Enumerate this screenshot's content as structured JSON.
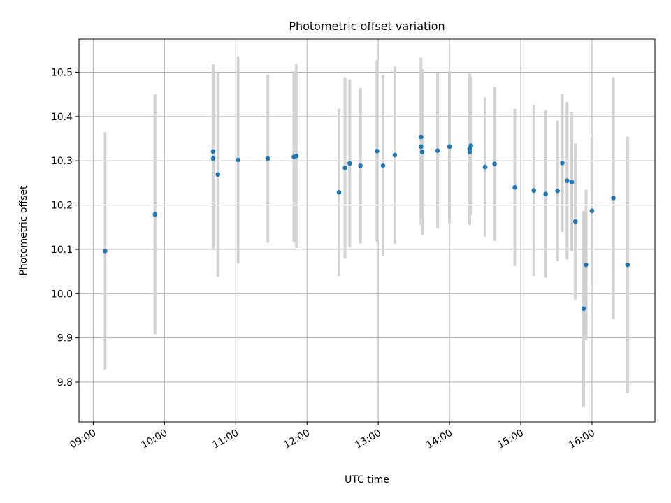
{
  "chart_data": {
    "type": "scatter",
    "title": "Photometric offset variation",
    "xlabel": "UTC time",
    "ylabel": "Photometric offset",
    "xlim": [
      "08:48",
      "16:53"
    ],
    "ylim": [
      9.71,
      10.575
    ],
    "grid": true,
    "x_ticks": [
      "09:00",
      "10:00",
      "11:00",
      "12:00",
      "13:00",
      "14:00",
      "15:00",
      "16:00"
    ],
    "y_ticks": [
      "9.8",
      "9.9",
      "10.0",
      "10.1",
      "10.2",
      "10.3",
      "10.4",
      "10.5"
    ],
    "colors": {
      "point": "#1f77b4",
      "errorbar": "#d3d3d3",
      "grid": "#b0b0b0"
    },
    "points": [
      {
        "x": "09:10",
        "y": 10.096,
        "err": 0.268
      },
      {
        "x": "09:52",
        "y": 10.179,
        "err": 0.271
      },
      {
        "x": "10:41",
        "y": 10.321,
        "err": 0.197
      },
      {
        "x": "10:41",
        "y": 10.305,
        "err": 0.207
      },
      {
        "x": "10:45",
        "y": 10.269,
        "err": 0.231
      },
      {
        "x": "11:02",
        "y": 10.302,
        "err": 0.234
      },
      {
        "x": "11:27",
        "y": 10.305,
        "err": 0.19
      },
      {
        "x": "11:49",
        "y": 10.309,
        "err": 0.193
      },
      {
        "x": "11:51",
        "y": 10.311,
        "err": 0.208
      },
      {
        "x": "12:27",
        "y": 10.229,
        "err": 0.189
      },
      {
        "x": "12:32",
        "y": 10.284,
        "err": 0.205
      },
      {
        "x": "12:36",
        "y": 10.294,
        "err": 0.19
      },
      {
        "x": "12:45",
        "y": 10.289,
        "err": 0.176
      },
      {
        "x": "12:59",
        "y": 10.322,
        "err": 0.205
      },
      {
        "x": "13:04",
        "y": 10.289,
        "err": 0.205
      },
      {
        "x": "13:14",
        "y": 10.313,
        "err": 0.2
      },
      {
        "x": "13:36",
        "y": 10.354,
        "err": 0.179
      },
      {
        "x": "13:36",
        "y": 10.332,
        "err": 0.177
      },
      {
        "x": "13:37",
        "y": 10.32,
        "err": 0.187
      },
      {
        "x": "13:50",
        "y": 10.323,
        "err": 0.176
      },
      {
        "x": "14:00",
        "y": 10.332,
        "err": 0.172
      },
      {
        "x": "14:17",
        "y": 10.327,
        "err": 0.17
      },
      {
        "x": "14:17",
        "y": 10.32,
        "err": 0.165
      },
      {
        "x": "14:18",
        "y": 10.334,
        "err": 0.157
      },
      {
        "x": "14:30",
        "y": 10.286,
        "err": 0.157
      },
      {
        "x": "14:38",
        "y": 10.293,
        "err": 0.174
      },
      {
        "x": "14:55",
        "y": 10.24,
        "err": 0.178
      },
      {
        "x": "15:11",
        "y": 10.233,
        "err": 0.193
      },
      {
        "x": "15:21",
        "y": 10.225,
        "err": 0.189
      },
      {
        "x": "15:31",
        "y": 10.232,
        "err": 0.159
      },
      {
        "x": "15:35",
        "y": 10.295,
        "err": 0.156
      },
      {
        "x": "15:39",
        "y": 10.255,
        "err": 0.178
      },
      {
        "x": "15:43",
        "y": 10.252,
        "err": 0.157
      },
      {
        "x": "15:46",
        "y": 10.163,
        "err": 0.177
      },
      {
        "x": "15:53",
        "y": 9.966,
        "err": 0.221
      },
      {
        "x": "15:55",
        "y": 10.065,
        "err": 0.17
      },
      {
        "x": "16:00",
        "y": 10.187,
        "err": 0.167
      },
      {
        "x": "16:18",
        "y": 10.216,
        "err": 0.273
      },
      {
        "x": "16:30",
        "y": 10.065,
        "err": 0.29
      }
    ]
  }
}
